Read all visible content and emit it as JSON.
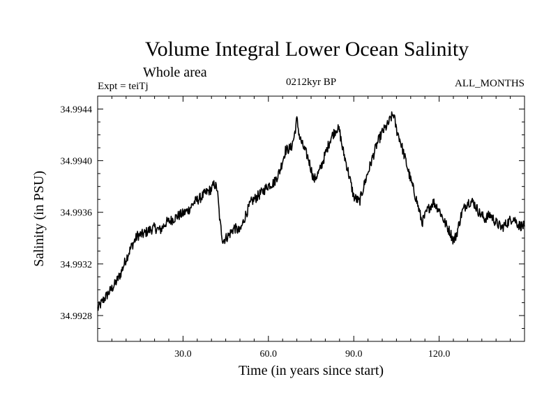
{
  "chart_data": {
    "type": "line",
    "title": "Volume Integral Lower Ocean Salinity",
    "subtitle": "Whole area",
    "experiment_label": "Expt = teiTj",
    "period_label": "0212kyr BP",
    "months_label": "ALL_MONTHS",
    "xlabel": "Time (in years since start)",
    "ylabel": "Salinity (in PSU)",
    "xlim": [
      0,
      150
    ],
    "ylim": [
      34.9926,
      34.9945
    ],
    "xticks": [
      30,
      60,
      90,
      120
    ],
    "xtick_labels": [
      "30.0",
      "60.0",
      "90.0",
      "120.0"
    ],
    "yticks": [
      34.9928,
      34.9932,
      34.9936,
      34.994,
      34.9944
    ],
    "ytick_labels": [
      "34.9928",
      "34.9932",
      "34.9936",
      "34.9940",
      "34.9944"
    ],
    "grid": false,
    "series": [
      {
        "name": "Salinity",
        "color": "#000000",
        "x": [
          0,
          2,
          4,
          6,
          8,
          10,
          12,
          14,
          16,
          18,
          20,
          22,
          24,
          26,
          28,
          30,
          32,
          34,
          36,
          38,
          40,
          41,
          42,
          43,
          44,
          46,
          48,
          50,
          52,
          54,
          56,
          58,
          60,
          62,
          64,
          66,
          68,
          69,
          70,
          71,
          72,
          74,
          76,
          78,
          80,
          82,
          84,
          85,
          86,
          88,
          90,
          92,
          94,
          96,
          98,
          100,
          102,
          103,
          104,
          105,
          106,
          108,
          110,
          112,
          114,
          116,
          118,
          120,
          122,
          124,
          125,
          126,
          128,
          130,
          132,
          134,
          136,
          138,
          140,
          142,
          144,
          146,
          148,
          150
        ],
        "y": [
          34.99285,
          34.99292,
          34.99298,
          34.99304,
          34.99312,
          34.99324,
          34.99334,
          34.99342,
          34.99343,
          34.99346,
          34.99348,
          34.99346,
          34.99352,
          34.99354,
          34.99357,
          34.99359,
          34.99362,
          34.99368,
          34.99371,
          34.99375,
          34.99378,
          34.99382,
          34.99378,
          34.99352,
          34.99338,
          34.99342,
          34.99348,
          34.99345,
          34.99358,
          34.99368,
          34.99372,
          34.99376,
          34.99381,
          34.99383,
          34.99392,
          34.99408,
          34.9941,
          34.99418,
          34.99432,
          34.99418,
          34.99412,
          34.99402,
          34.99385,
          34.99392,
          34.99405,
          34.99418,
          34.99425,
          34.99423,
          34.9941,
          34.99392,
          34.99372,
          34.99368,
          34.99384,
          34.99398,
          34.99412,
          34.99422,
          34.99428,
          34.99433,
          34.99436,
          34.99424,
          34.99418,
          34.99402,
          34.99385,
          34.9937,
          34.99352,
          34.99362,
          34.99368,
          34.99362,
          34.99352,
          34.99344,
          34.99338,
          34.99342,
          34.9936,
          34.99368,
          34.99368,
          34.9936,
          34.99355,
          34.99358,
          34.99352,
          34.99348,
          34.99352,
          34.99356,
          34.9935,
          34.99349
        ]
      }
    ]
  }
}
